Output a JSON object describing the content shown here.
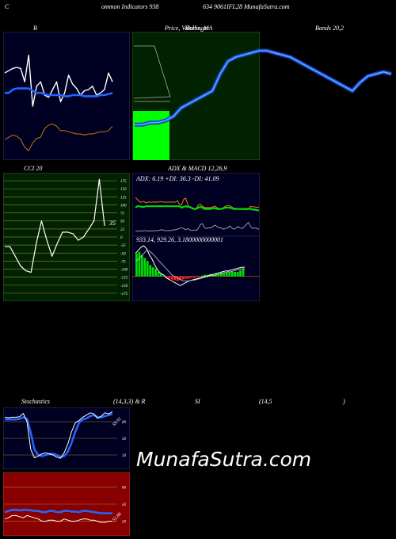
{
  "header": {
    "left": "C",
    "middle": "ommon  Indicators 938",
    "right": "634  9061IFL28  MunafaSutra.com"
  },
  "labels": {
    "bollinger": "B",
    "price_ma": "Price,  Volume,  MA",
    "price_ma_overlay": "Bollinger",
    "bands": "Bands 20,2",
    "cci": "CCI 20",
    "adx_macd": "ADX  &  MACD 12,26,9",
    "adx_values": "ADX: 6.19  +DI: 36.3  -DI: 41.09",
    "macd_values": "933.14,   929.26,   3.1800000000001",
    "cci_value": "35",
    "stoch_a": "Stochastics",
    "stoch_b": "(14,3,3) & R",
    "stoch_c": "SI",
    "stoch_d": "(14,5",
    "stoch_e": ")",
    "stoch_value": "59.91",
    "rsi_value": "51.86"
  },
  "watermark": "MunafaSutra.com",
  "colors": {
    "background": "#000000",
    "panel_navy": "#000022",
    "panel_green": "#002200",
    "panel_red": "#880000",
    "price_blue": "#2266ff",
    "volume_green": "#00ff00",
    "orange": "#cc7700",
    "grid_olive": "#7a7a2a"
  },
  "chart_data": [
    {
      "type": "line",
      "name": "bollinger-mini",
      "x": [
        1,
        2,
        3,
        4,
        5,
        6,
        7,
        8,
        9,
        10,
        11,
        12,
        13,
        14,
        15,
        16,
        17,
        18,
        19,
        20,
        21,
        22,
        23,
        24,
        25,
        26,
        27,
        28
      ],
      "series": [
        {
          "values": [
            70,
            72,
            74,
            75,
            74,
            62,
            86,
            40,
            58,
            62,
            50,
            48,
            55,
            62,
            44,
            52,
            68,
            60,
            56,
            50,
            54,
            55,
            58,
            50,
            52,
            55,
            70,
            62
          ]
        },
        {
          "values": [
            52,
            52,
            55,
            56,
            56,
            56,
            56,
            54,
            52,
            52,
            51,
            50,
            50,
            50,
            50,
            49,
            49,
            50,
            50,
            50,
            49,
            49,
            49,
            49,
            50,
            50,
            51,
            52
          ]
        },
        {
          "values": [
            10,
            12,
            14,
            13,
            10,
            3,
            0,
            7,
            11,
            12,
            20,
            23,
            24,
            22,
            18,
            18,
            17,
            16,
            15,
            15,
            14,
            15,
            15,
            16,
            17,
            17,
            18,
            22
          ]
        }
      ],
      "ylim": [
        0,
        100
      ]
    },
    {
      "type": "line",
      "name": "price-ma",
      "x": [
        1,
        2,
        3,
        4,
        5,
        6,
        7,
        8,
        9,
        10,
        11,
        12,
        13,
        14,
        15,
        16,
        17,
        18,
        19,
        20,
        21,
        22,
        23,
        24,
        25,
        26,
        27,
        28,
        29,
        30,
        31,
        32,
        33,
        34
      ],
      "series": [
        {
          "values": [
            956,
            956,
            957,
            957,
            958,
            960,
            964,
            966,
            968,
            970,
            972,
            980,
            986,
            988,
            989,
            990,
            991,
            991,
            990,
            989,
            988,
            986,
            984,
            982,
            980,
            978,
            976,
            974,
            972,
            976,
            979,
            980,
            981,
            980
          ]
        }
      ],
      "volume": [
        34
      ],
      "ylim": [
        940,
        1000
      ]
    },
    {
      "type": "line",
      "name": "cci",
      "x": [
        1,
        2,
        3,
        4,
        5,
        6,
        7,
        8,
        9,
        10,
        11,
        12,
        13,
        14,
        15,
        16,
        17,
        18,
        19,
        20
      ],
      "series": [
        {
          "values": [
            -30,
            -30,
            -60,
            -90,
            -105,
            -110,
            -20,
            50,
            -10,
            -60,
            -20,
            15,
            15,
            10,
            -10,
            0,
            25,
            50,
            180,
            35
          ]
        }
      ],
      "ticks": [
        175,
        150,
        125,
        100,
        75,
        50,
        25,
        0,
        -25,
        -50,
        -75,
        -100,
        -125,
        -150,
        -175
      ],
      "ylim": [
        -190,
        190
      ]
    },
    {
      "type": "line",
      "name": "adx",
      "x": [
        1,
        2,
        3,
        4,
        5,
        6,
        7,
        8,
        9,
        10,
        11,
        12,
        13,
        14,
        15,
        16,
        17,
        18,
        19,
        20,
        21,
        22,
        23,
        24,
        25,
        26,
        27,
        28,
        29,
        30,
        31,
        32,
        33,
        34,
        35,
        36,
        37,
        38,
        39,
        40,
        41,
        42,
        43,
        44,
        45,
        46,
        47,
        48,
        49,
        50,
        51,
        52,
        53,
        54,
        55,
        56,
        57,
        58,
        59,
        60
      ],
      "series": [
        {
          "values": [
            55,
            52,
            48,
            48,
            49,
            47,
            48,
            48,
            48,
            48,
            48,
            48,
            49,
            48,
            48,
            48,
            48,
            48,
            48,
            48,
            50,
            45,
            44,
            52,
            54,
            44,
            40,
            40,
            38,
            38,
            44,
            45,
            42,
            40,
            40,
            40,
            40,
            41,
            42,
            40,
            38,
            38,
            40,
            42,
            43,
            43,
            41,
            39,
            39,
            38,
            38,
            38,
            37,
            37,
            38,
            42,
            41,
            41,
            40,
            41
          ]
        },
        {
          "values": [
            40,
            42,
            42,
            41,
            41,
            42,
            42,
            42,
            42,
            42,
            42,
            42,
            42,
            42,
            42,
            42,
            42,
            42,
            42,
            42,
            42,
            42,
            40,
            41,
            42,
            41,
            41,
            39,
            38,
            38,
            40,
            41,
            40,
            38,
            38,
            38,
            38,
            39,
            39,
            38,
            38,
            38,
            39,
            40,
            40,
            40,
            39,
            38,
            38,
            38,
            38,
            38,
            38,
            38,
            38,
            38,
            37,
            37,
            36,
            36
          ]
        },
        {
          "values": [
            5,
            5,
            6,
            5,
            6,
            6,
            5,
            6,
            5,
            6,
            6,
            6,
            7,
            7,
            6,
            6,
            6,
            6,
            7,
            7,
            8,
            9,
            10,
            9,
            7,
            9,
            7,
            6,
            7,
            6,
            9,
            15,
            16,
            10,
            9,
            10,
            10,
            12,
            14,
            12,
            10,
            10,
            8,
            9,
            10,
            13,
            10,
            8,
            10,
            12,
            10,
            9,
            12,
            15,
            18,
            12,
            9,
            10,
            9,
            8
          ]
        }
      ],
      "ylim": [
        0,
        75
      ]
    },
    {
      "type": "bar",
      "name": "macd",
      "values": [
        30,
        32,
        28,
        24,
        20,
        15,
        12,
        10,
        6,
        3,
        1,
        -2,
        -3,
        -4,
        -5,
        -6,
        -5,
        -4,
        -3,
        -3,
        -2,
        -2,
        -1,
        0,
        1,
        2,
        2,
        3,
        3,
        4,
        4,
        5,
        5,
        5,
        6,
        6,
        6,
        6,
        8,
        10
      ],
      "series": [
        {
          "values": [
            30,
            34,
            38,
            40,
            36,
            28,
            22,
            14,
            8,
            4,
            2,
            -2,
            -4,
            -6,
            -8,
            -10,
            -12,
            -10,
            -8,
            -6,
            -5,
            -4,
            -3,
            -2,
            -1,
            0,
            1,
            2,
            3,
            4,
            5,
            6,
            7,
            7,
            8,
            9,
            10,
            11,
            12,
            12
          ]
        },
        {
          "values": [
            20,
            22,
            26,
            30,
            34,
            33,
            30,
            26,
            22,
            18,
            14,
            10,
            6,
            2,
            0,
            -2,
            -4,
            -6,
            -6,
            -6,
            -5,
            -5,
            -4,
            -3,
            -2,
            -1,
            0,
            1,
            1,
            2,
            3,
            4,
            5,
            6,
            6,
            7,
            8,
            9,
            10,
            10
          ]
        }
      ],
      "ylim": [
        -20,
        40
      ]
    },
    {
      "type": "line",
      "name": "stochastics",
      "x": [
        1,
        2,
        3,
        4,
        5,
        6,
        7,
        8,
        9,
        10,
        11,
        12,
        13,
        14,
        15,
        16,
        17,
        18,
        19,
        20,
        21,
        22,
        23,
        24,
        25,
        26,
        27,
        28,
        29,
        30
      ],
      "series": [
        {
          "values": [
            88,
            87,
            88,
            88,
            89,
            95,
            80,
            30,
            15,
            18,
            22,
            24,
            22,
            20,
            16,
            14,
            24,
            40,
            62,
            78,
            82,
            88,
            92,
            96,
            94,
            86,
            90,
            96,
            94,
            98
          ]
        },
        {
          "values": [
            84,
            84,
            84,
            84,
            85,
            88,
            85,
            60,
            30,
            20,
            18,
            20,
            22,
            22,
            20,
            16,
            18,
            26,
            42,
            62,
            78,
            84,
            86,
            90,
            92,
            88,
            88,
            90,
            92,
            94
          ]
        }
      ],
      "ticks": [
        80,
        50,
        20
      ],
      "ylim": [
        0,
        100
      ]
    },
    {
      "type": "line",
      "name": "rsi",
      "x": [
        1,
        2,
        3,
        4,
        5,
        6,
        7,
        8,
        9,
        10,
        11,
        12,
        13,
        14,
        15,
        16,
        17,
        18,
        19,
        20,
        21,
        22,
        23,
        24,
        25,
        26,
        27,
        28,
        29,
        30
      ],
      "series": [
        {
          "values": [
            24,
            26,
            30,
            30,
            28,
            26,
            30,
            28,
            26,
            24,
            20,
            20,
            22,
            22,
            20,
            20,
            24,
            22,
            20,
            20,
            22,
            24,
            24,
            22,
            22,
            20,
            18,
            18,
            20,
            20
          ]
        },
        {
          "values": [
            36,
            38,
            40,
            40,
            39,
            40,
            40,
            39,
            38,
            38,
            36,
            36,
            38,
            38,
            36,
            36,
            38,
            38,
            37,
            37,
            36,
            38,
            38,
            37,
            36,
            35,
            34,
            34,
            34,
            34
          ]
        }
      ],
      "ticks": [
        80,
        50,
        20
      ],
      "ylim": [
        0,
        100
      ]
    }
  ]
}
